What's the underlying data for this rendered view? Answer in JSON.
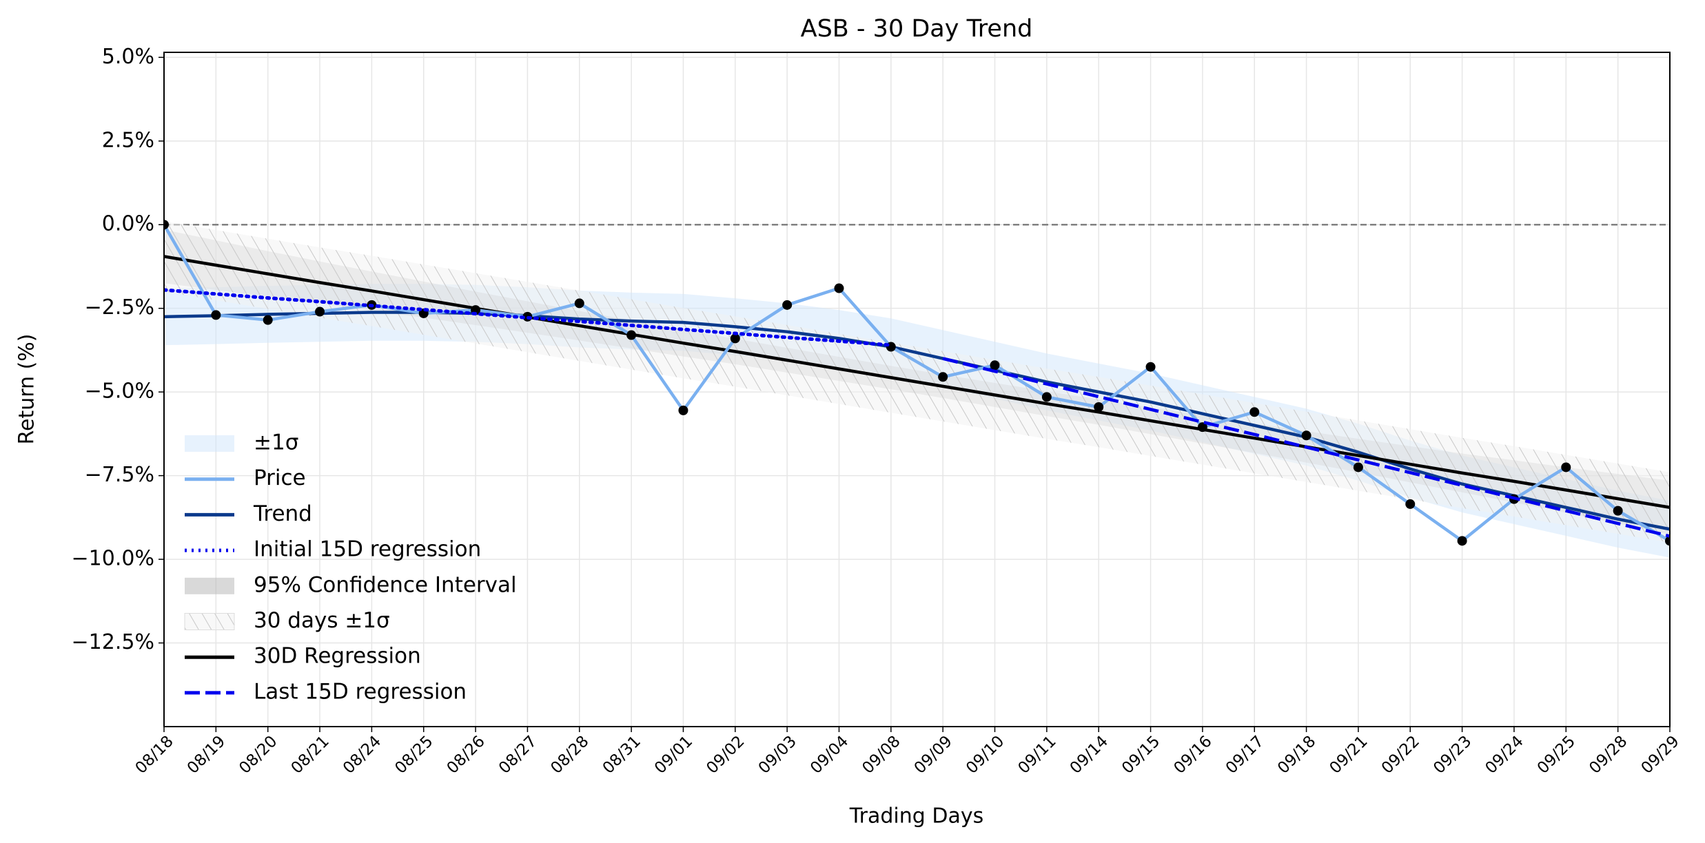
{
  "chart_data": {
    "type": "line",
    "title": "ASB - 30 Day Trend",
    "xlabel": "Trading Days",
    "ylabel": "Return (%)",
    "categories": [
      "08/18",
      "08/19",
      "08/20",
      "08/21",
      "08/24",
      "08/25",
      "08/26",
      "08/27",
      "08/28",
      "08/31",
      "09/01",
      "09/02",
      "09/03",
      "09/04",
      "09/08",
      "09/09",
      "09/10",
      "09/11",
      "09/14",
      "09/15",
      "09/16",
      "09/17",
      "09/18",
      "09/21",
      "09/22",
      "09/23",
      "09/24",
      "09/25",
      "09/28",
      "09/29"
    ],
    "ylim": [
      -15,
      5.15
    ],
    "yticks": [
      {
        "value": -12.5,
        "label": "−12.5%"
      },
      {
        "value": -10,
        "label": "−10.0%"
      },
      {
        "value": -7.5,
        "label": "−7.5%"
      },
      {
        "value": -5,
        "label": "−5.0%"
      },
      {
        "value": -2.5,
        "label": "−2.5%"
      },
      {
        "value": 0,
        "label": "0.0%"
      },
      {
        "value": 2.5,
        "label": "2.5%"
      },
      {
        "value": 5,
        "label": "5.0%"
      }
    ],
    "grid": true,
    "reference_line": 0,
    "legend": "lower left",
    "series": [
      {
        "name": "±1σ",
        "style": "band",
        "color": "#cfe6fb",
        "upper": [
          -1.9,
          -1.87,
          -1.83,
          -1.8,
          -1.77,
          -1.77,
          -1.8,
          -1.87,
          -1.97,
          -2.03,
          -2.07,
          -2.2,
          -2.35,
          -2.55,
          -2.8,
          -3.15,
          -3.5,
          -3.85,
          -4.15,
          -4.45,
          -4.8,
          -5.15,
          -5.5,
          -5.95,
          -6.45,
          -6.9,
          -7.25,
          -7.6,
          -7.95,
          -8.25
        ],
        "lower": [
          -3.6,
          -3.57,
          -3.53,
          -3.5,
          -3.47,
          -3.47,
          -3.5,
          -3.57,
          -3.67,
          -3.73,
          -3.77,
          -3.9,
          -4.05,
          -4.25,
          -4.5,
          -4.85,
          -5.2,
          -5.55,
          -5.85,
          -6.15,
          -6.5,
          -6.85,
          -7.2,
          -7.65,
          -8.15,
          -8.6,
          -8.95,
          -9.3,
          -9.65,
          -9.95
        ]
      },
      {
        "name": "Price",
        "style": "solid",
        "color": "#7ab0f0",
        "marker_color": "#000000",
        "values": [
          0,
          -2.7,
          -2.85,
          -2.6,
          -2.4,
          -2.65,
          -2.55,
          -2.75,
          -2.35,
          -3.3,
          -5.55,
          -3.4,
          -2.4,
          -1.9,
          -3.65,
          -4.55,
          -4.2,
          -5.15,
          -5.45,
          -4.25,
          -6.05,
          -5.6,
          -6.3,
          -7.25,
          -8.35,
          -9.45,
          -8.2,
          -7.25,
          -8.55,
          -9.45
        ]
      },
      {
        "name": "Trend",
        "style": "solid",
        "color": "#0b3a8c",
        "values": [
          -2.75,
          -2.72,
          -2.68,
          -2.65,
          -2.62,
          -2.62,
          -2.65,
          -2.72,
          -2.82,
          -2.88,
          -2.92,
          -3.05,
          -3.2,
          -3.4,
          -3.65,
          -4.0,
          -4.35,
          -4.7,
          -5.0,
          -5.3,
          -5.65,
          -6.0,
          -6.35,
          -6.8,
          -7.3,
          -7.75,
          -8.1,
          -8.45,
          -8.8,
          -9.1
        ]
      },
      {
        "name": "Initial 15D regression",
        "style": "dotted",
        "color": "#0000ee",
        "values": [
          -1.95,
          -2.07,
          -2.19,
          -2.3,
          -2.42,
          -2.54,
          -2.66,
          -2.78,
          -2.89,
          -3.01,
          -3.13,
          -3.25,
          -3.37,
          -3.48,
          -3.6,
          null,
          null,
          null,
          null,
          null,
          null,
          null,
          null,
          null,
          null,
          null,
          null,
          null,
          null,
          null
        ]
      },
      {
        "name": "95% Confidence Interval",
        "style": "band",
        "color": "#b4b4b4",
        "upper": [
          -0.15,
          -0.47,
          -0.79,
          -1.1,
          -1.4,
          -1.7,
          -2.0,
          -2.29,
          -2.58,
          -2.86,
          -3.14,
          -3.41,
          -3.68,
          -3.95,
          -4.22,
          -4.48,
          -4.73,
          -4.98,
          -5.22,
          -5.46,
          -5.7,
          -5.94,
          -6.17,
          -6.4,
          -6.62,
          -6.84,
          -7.04,
          -7.25,
          -7.45,
          -7.65
        ],
        "lower": [
          -1.75,
          -1.95,
          -2.15,
          -2.36,
          -2.56,
          -2.78,
          -3.0,
          -3.23,
          -3.46,
          -3.7,
          -3.94,
          -4.17,
          -4.42,
          -4.67,
          -4.92,
          -5.18,
          -5.45,
          -5.72,
          -5.98,
          -6.26,
          -6.54,
          -6.82,
          -7.11,
          -7.4,
          -7.7,
          -8.0,
          -8.3,
          -8.61,
          -8.93,
          -9.25
        ]
      },
      {
        "name": "30 days ±1σ",
        "style": "hatch",
        "color": "#cccccc",
        "upper": [
          0.1,
          -0.16,
          -0.42,
          -0.68,
          -0.93,
          -1.19,
          -1.45,
          -1.71,
          -1.97,
          -2.23,
          -2.49,
          -2.74,
          -3.0,
          -3.26,
          -3.52,
          -3.78,
          -4.04,
          -4.3,
          -4.55,
          -4.81,
          -5.07,
          -5.33,
          -5.59,
          -5.85,
          -6.11,
          -6.37,
          -6.62,
          -6.88,
          -7.14,
          -7.4
        ],
        "lower": [
          -2.0,
          -2.26,
          -2.52,
          -2.78,
          -3.03,
          -3.29,
          -3.55,
          -3.81,
          -4.07,
          -4.33,
          -4.59,
          -4.84,
          -5.1,
          -5.36,
          -5.62,
          -5.88,
          -6.14,
          -6.4,
          -6.65,
          -6.91,
          -7.17,
          -7.43,
          -7.69,
          -7.95,
          -8.21,
          -8.47,
          -8.72,
          -8.98,
          -9.24,
          -9.5
        ]
      },
      {
        "name": "30D Regression",
        "style": "solid",
        "color": "#000000",
        "values": [
          -0.95,
          -1.21,
          -1.47,
          -1.73,
          -1.98,
          -2.24,
          -2.5,
          -2.76,
          -3.02,
          -3.28,
          -3.54,
          -3.79,
          -4.05,
          -4.31,
          -4.57,
          -4.83,
          -5.09,
          -5.35,
          -5.6,
          -5.86,
          -6.12,
          -6.38,
          -6.64,
          -6.9,
          -7.16,
          -7.42,
          -7.67,
          -7.93,
          -8.19,
          -8.45
        ]
      },
      {
        "name": "Last 15D regression",
        "style": "dashed",
        "color": "#0000ee",
        "values": [
          null,
          null,
          null,
          null,
          null,
          null,
          null,
          null,
          null,
          null,
          null,
          null,
          null,
          null,
          null,
          -4.0,
          -4.38,
          -4.76,
          -5.14,
          -5.52,
          -5.9,
          -6.27,
          -6.65,
          -7.03,
          -7.41,
          -7.79,
          -8.17,
          -8.55,
          -8.93,
          -9.31
        ]
      }
    ]
  }
}
